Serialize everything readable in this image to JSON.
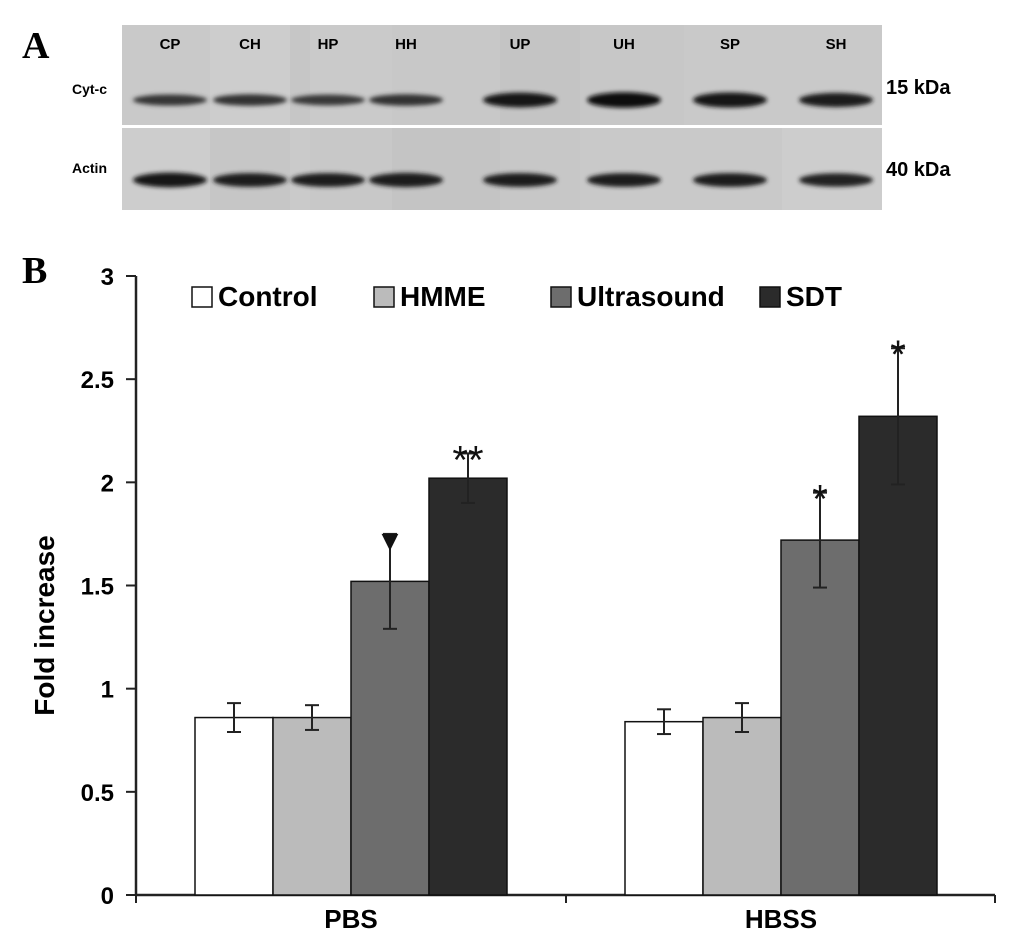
{
  "panel_a": {
    "letter": "A",
    "lanes": [
      "CP",
      "CH",
      "HP",
      "HH",
      "UP",
      "UH",
      "SP",
      "SH"
    ],
    "rows": [
      {
        "label": "Cyt-c",
        "mw": "15 kDa",
        "intensity": [
          0.45,
          0.5,
          0.42,
          0.5,
          0.85,
          0.95,
          0.9,
          0.8
        ]
      },
      {
        "label": "Actin",
        "mw": "40 kDa",
        "intensity": [
          0.85,
          0.75,
          0.75,
          0.8,
          0.75,
          0.75,
          0.75,
          0.72
        ]
      }
    ]
  },
  "panel_b": {
    "letter": "B"
  },
  "chart_data": {
    "type": "bar",
    "categories": [
      "PBS",
      "HBSS"
    ],
    "series": [
      {
        "name": "Control",
        "values": [
          0.86,
          0.84
        ],
        "errors": [
          0.07,
          0.06
        ],
        "color": "#ffffff",
        "sig": [
          "",
          ""
        ]
      },
      {
        "name": "HMME",
        "values": [
          0.86,
          0.86
        ],
        "errors": [
          0.06,
          0.07
        ],
        "color": "#bbbbbb",
        "sig": [
          "",
          ""
        ]
      },
      {
        "name": "Ultrasound",
        "values": [
          1.52,
          1.72
        ],
        "errors": [
          0.23,
          0.23
        ],
        "color": "#6d6d6d",
        "sig": [
          "▼",
          "*"
        ]
      },
      {
        "name": "SDT",
        "values": [
          2.02,
          2.32
        ],
        "errors": [
          0.12,
          0.33
        ],
        "color": "#2b2b2b",
        "sig": [
          "**",
          "*"
        ]
      }
    ],
    "ylabel": "Fold increase",
    "xlabel": "",
    "ylim": [
      0,
      3
    ],
    "yticks": [
      0,
      0.5,
      1,
      1.5,
      2,
      2.5,
      3
    ],
    "ytick_labels": [
      "0",
      "0.5",
      "1",
      "1.5",
      "2",
      "2.5",
      "3"
    ],
    "grid": false,
    "legend_position": "top"
  }
}
